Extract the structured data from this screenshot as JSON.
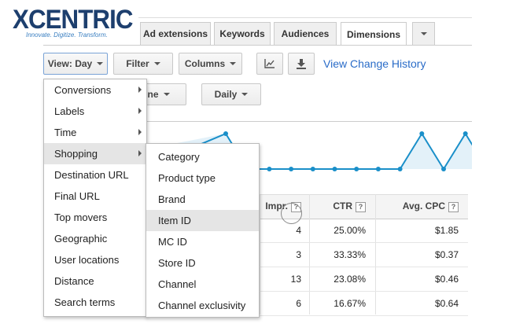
{
  "logo": {
    "brand": "XCENTRIC",
    "tagline": "Innovate. Digitize. Transform."
  },
  "tabs": [
    "Ad extensions",
    "Keywords",
    "Audiences",
    "Dimensions"
  ],
  "active_tab": 3,
  "toolbar": {
    "view": "View: Day",
    "filter": "Filter",
    "columns": "Columns",
    "change_history": "View Change History"
  },
  "toolbar2": {
    "segment": "None",
    "interval": "Daily"
  },
  "sparkline": {
    "values": [
      1,
      0,
      0,
      0,
      0,
      0,
      0,
      0,
      0,
      1,
      0,
      1,
      0
    ],
    "color": "#1a8fc9"
  },
  "table": {
    "headers": [
      {
        "label": "Impr.",
        "help": "?"
      },
      {
        "label": "CTR",
        "help": "?"
      },
      {
        "label": "Avg. CPC",
        "help": "?"
      }
    ],
    "rows": [
      [
        "4",
        "25.00%",
        "$1.85"
      ],
      [
        "3",
        "33.33%",
        "$0.37"
      ],
      [
        "13",
        "23.08%",
        "$0.46"
      ],
      [
        "6",
        "16.67%",
        "$0.64"
      ]
    ]
  },
  "menu": {
    "items": [
      {
        "label": "Conversions",
        "submenu": true
      },
      {
        "label": "Labels",
        "submenu": true
      },
      {
        "label": "Time",
        "submenu": true
      },
      {
        "label": "Shopping",
        "submenu": true
      },
      {
        "label": "Destination URL",
        "submenu": false
      },
      {
        "label": "Final URL",
        "submenu": false
      },
      {
        "label": "Top movers",
        "submenu": false
      },
      {
        "label": "Geographic",
        "submenu": false
      },
      {
        "label": "User locations",
        "submenu": false
      },
      {
        "label": "Distance",
        "submenu": false
      },
      {
        "label": "Search terms",
        "submenu": false
      }
    ],
    "highlighted": 3
  },
  "submenu": {
    "items": [
      "Category",
      "Product type",
      "Brand",
      "Item ID",
      "MC ID",
      "Store ID",
      "Channel",
      "Channel exclusivity"
    ],
    "highlighted": 3
  }
}
